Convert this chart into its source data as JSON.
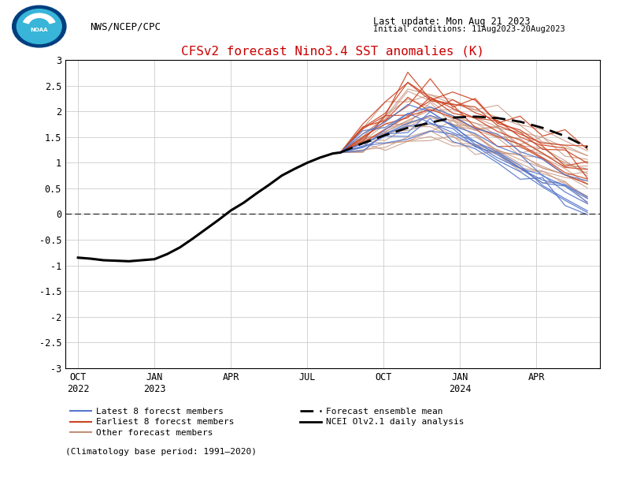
{
  "title": "CFSv2 forecast Nino3.4 SST anomalies (K)",
  "title_color": "#cc0000",
  "header_left": "NWS/NCEP/CPC",
  "header_right_line1": "Last update: Mon Aug 21 2023",
  "header_right_line2": "Initial conditions: 11Aug2023-20Aug2023",
  "footer": "(Climatology base period: 1991–2020)",
  "ylim": [
    -3,
    3
  ],
  "yticks": [
    -3,
    -2.5,
    -2,
    -1.5,
    -1,
    -0.5,
    0,
    0.5,
    1,
    1.5,
    2,
    2.5,
    3
  ],
  "xtick_positions": [
    0,
    3,
    6,
    9,
    12,
    15,
    18
  ],
  "xtick_labels": [
    "OCT\n2022",
    "JAN\n2023",
    "APR",
    "JUL",
    "OCT",
    "JAN\n2024",
    "APR"
  ],
  "xlim": [
    -0.5,
    20.5
  ],
  "analysis_color": "#000000",
  "ensemble_mean_color": "#000000",
  "latest8_color": "#5577cc",
  "earliest8_color": "#cc4422",
  "other_color": "#c4907a",
  "bg_color": "#ffffff",
  "grid_color": "#cccccc"
}
